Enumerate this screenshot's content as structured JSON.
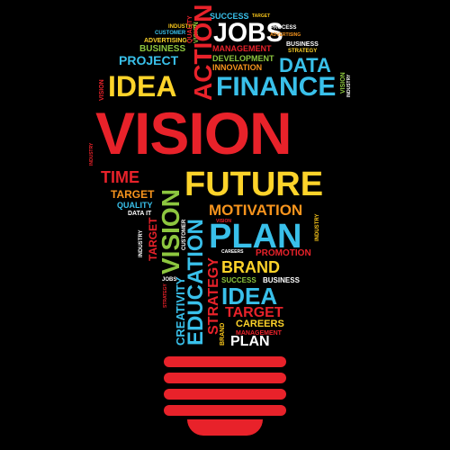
{
  "words": {
    "success_top": "SUCCESS",
    "target_top": "TARGET",
    "jobs": "JOBS",
    "process": "PROCESS",
    "industry_top": "INDUSTRY",
    "customer": "CUSTOMER",
    "quality_top": "QUALITY",
    "advertising": "ADVERTISING",
    "vision_v_top": "VISION",
    "management_top": "MANAGEMENT",
    "advertising_small": "ADVERTISING",
    "business_top": "BUSINESS",
    "business_right": "BUSINESS",
    "strategy_top": "STRATEGY",
    "project": "PROJECT",
    "development": "DEVELOPMENT",
    "innovation": "INNOVATION",
    "data_big": "DATA",
    "action": "ACTION",
    "vision_left_small": "VISION",
    "idea_big": "IDEA",
    "finance": "FINANCE",
    "vision_right_small": "VISION",
    "industry_right": "INDUSTRY",
    "vision_main": "VISION",
    "industry_left": "INDUSTRY",
    "time": "TIME",
    "future": "FUTURE",
    "target_mid": "TARGET",
    "quality_mid": "QUALITY",
    "data_it": "DATA IT",
    "motivation": "MOTIVATION",
    "vision_v_mid": "VISION",
    "target_v": "TARGET",
    "industry_v_left": "INDUSTRY",
    "customer_v": "CUSTOMER",
    "vision_tiny": "VISION",
    "plan_big": "PLAN",
    "industry_v_right": "INDUSTRY",
    "careers_tiny": "CAREERS",
    "promotion": "PROMOTION",
    "brand": "BRAND",
    "jobs_small": "JOBS",
    "strategy_v_left": "STRATEGY",
    "education": "EDUCATION",
    "success_mid": "SUCCESS",
    "business_mid": "BUSINESS",
    "strategy_v": "STRATEGY",
    "idea_mid": "IDEA",
    "target_low": "TARGET",
    "careers": "CAREERS",
    "creativity": "CREATIVITY",
    "brand_v": "BRAND",
    "management_low": "MANAGEMENT",
    "plan_low": "PLAN"
  },
  "colors": {
    "background": "#000000",
    "base": "#e8222a"
  }
}
